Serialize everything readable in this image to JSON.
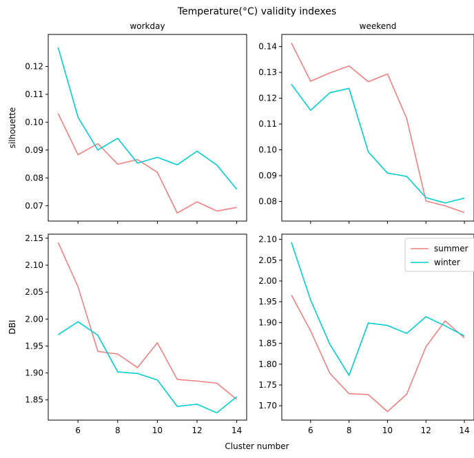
{
  "figure": {
    "title": "Temperature(°C) validity indexes",
    "xlabel": "Cluster number"
  },
  "colors": {
    "summer": "#f08080",
    "winter": "#00ced1"
  },
  "chart_data": [
    {
      "type": "line",
      "title": "workday",
      "ylabel": "silhouette",
      "x": [
        5,
        6,
        7,
        8,
        9,
        10,
        11,
        12,
        13,
        14
      ],
      "xlim": [
        4.5,
        14.5
      ],
      "ylim": [
        0.0645,
        0.1315
      ],
      "xticks": [
        6,
        8,
        10,
        12,
        14
      ],
      "xtick_labels_visible": false,
      "yticks": [
        0.07,
        0.08,
        0.09,
        0.1,
        0.11,
        0.12
      ],
      "ytick_labels": [
        "0.07",
        "0.08",
        "0.09",
        "0.10",
        "0.11",
        "0.12"
      ],
      "series": [
        {
          "name": "summer",
          "values": [
            0.1031,
            0.0883,
            0.0923,
            0.0849,
            0.0866,
            0.082,
            0.0674,
            0.0714,
            0.0681,
            0.0694
          ]
        },
        {
          "name": "winter",
          "values": [
            0.1268,
            0.1018,
            0.09,
            0.0942,
            0.0853,
            0.0874,
            0.0847,
            0.0896,
            0.0846,
            0.0759
          ]
        }
      ],
      "grid": false
    },
    {
      "type": "line",
      "title": "weekend",
      "ylabel": "",
      "x": [
        5,
        6,
        7,
        8,
        9,
        10,
        11,
        12,
        13,
        14
      ],
      "xlim": [
        4.5,
        14.5
      ],
      "ylim": [
        0.0724,
        0.1447
      ],
      "xticks": [
        6,
        8,
        10,
        12,
        14
      ],
      "xtick_labels_visible": false,
      "yticks": [
        0.08,
        0.09,
        0.1,
        0.11,
        0.12,
        0.13,
        0.14
      ],
      "ytick_labels": [
        "0.08",
        "0.09",
        "0.10",
        "0.11",
        "0.12",
        "0.13",
        "0.14"
      ],
      "series": [
        {
          "name": "summer",
          "values": [
            0.1414,
            0.1266,
            0.1298,
            0.1325,
            0.1264,
            0.1294,
            0.1121,
            0.0802,
            0.0783,
            0.0757
          ]
        },
        {
          "name": "winter",
          "values": [
            0.1254,
            0.1153,
            0.1221,
            0.1238,
            0.0992,
            0.091,
            0.0897,
            0.0815,
            0.0794,
            0.0813
          ]
        }
      ],
      "grid": false
    },
    {
      "type": "line",
      "title": "",
      "ylabel": "DBI",
      "x": [
        5,
        6,
        7,
        8,
        9,
        10,
        11,
        12,
        13,
        14
      ],
      "xlim": [
        4.5,
        14.5
      ],
      "ylim": [
        1.8125,
        2.1575
      ],
      "xticks": [
        6,
        8,
        10,
        12,
        14
      ],
      "xtick_labels": [
        "6",
        "8",
        "10",
        "12",
        "14"
      ],
      "yticks": [
        1.85,
        1.9,
        1.95,
        2.0,
        2.05,
        2.1,
        2.15
      ],
      "ytick_labels": [
        "1.85",
        "1.90",
        "1.95",
        "2.00",
        "2.05",
        "2.10",
        "2.15"
      ],
      "series": [
        {
          "name": "summer",
          "values": [
            2.142,
            2.06,
            1.94,
            1.935,
            1.91,
            1.956,
            1.888,
            1.885,
            1.881,
            1.851
          ]
        },
        {
          "name": "winter",
          "values": [
            1.971,
            1.995,
            1.97,
            1.902,
            1.899,
            1.887,
            1.838,
            1.842,
            1.826,
            1.856
          ]
        }
      ],
      "grid": false
    },
    {
      "type": "line",
      "title": "",
      "ylabel": "",
      "x": [
        5,
        6,
        7,
        8,
        9,
        10,
        11,
        12,
        13,
        14
      ],
      "xlim": [
        4.5,
        14.5
      ],
      "ylim": [
        1.6655,
        2.1125
      ],
      "xticks": [
        6,
        8,
        10,
        12,
        14
      ],
      "xtick_labels": [
        "6",
        "8",
        "10",
        "12",
        "14"
      ],
      "yticks": [
        1.7,
        1.75,
        1.8,
        1.85,
        1.9,
        1.95,
        2.0,
        2.05,
        2.1
      ],
      "ytick_labels": [
        "1.70",
        "1.75",
        "1.80",
        "1.85",
        "1.90",
        "1.95",
        "2.00",
        "2.05",
        "2.10"
      ],
      "series": [
        {
          "name": "summer",
          "values": [
            1.966,
            1.88,
            1.778,
            1.729,
            1.727,
            1.686,
            1.728,
            1.842,
            1.904,
            1.863
          ]
        },
        {
          "name": "winter",
          "values": [
            2.093,
            1.954,
            1.848,
            1.773,
            1.899,
            1.893,
            1.874,
            1.914,
            1.892,
            1.868
          ]
        }
      ],
      "legend": {
        "entries": [
          "summer",
          "winter"
        ],
        "placement": "top-right"
      },
      "grid": false
    }
  ]
}
